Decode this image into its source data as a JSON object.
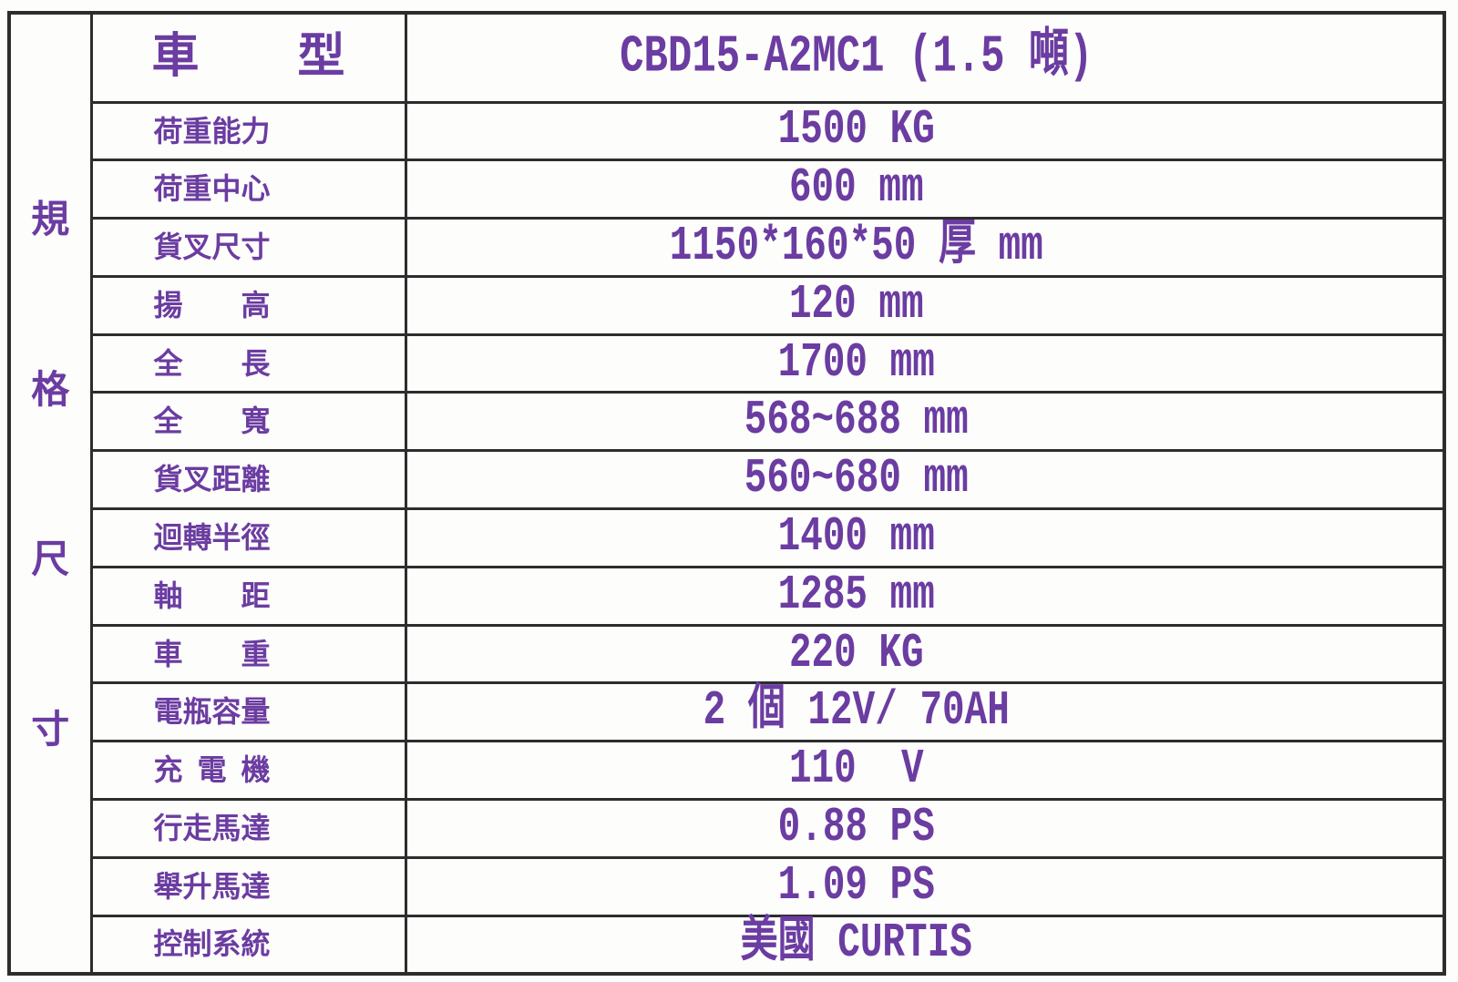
{
  "colors": {
    "text_purple": "#6b3ca1",
    "grid_line": "#2d2d2d",
    "background": "#fdfdfc"
  },
  "table": {
    "side_label": "規格尺寸",
    "header": {
      "label": "車型",
      "value": "CBD15-A2MC1 (1.5 噸)"
    },
    "rows": [
      {
        "label": "荷重能力",
        "value": "1500 KG"
      },
      {
        "label": "荷重中心",
        "value": "600 mm"
      },
      {
        "label": "貨叉尺寸",
        "value": "1150*160*50 厚 mm"
      },
      {
        "label": "揚高",
        "value": "120 mm"
      },
      {
        "label": "全長",
        "value": "1700 mm"
      },
      {
        "label": "全寬",
        "value": "568~688 mm"
      },
      {
        "label": "貨叉距離",
        "value": "560~680 mm"
      },
      {
        "label": "迴轉半徑",
        "value": "1400 mm"
      },
      {
        "label": "軸距",
        "value": "1285 mm"
      },
      {
        "label": "車重",
        "value": "220 KG"
      },
      {
        "label": "電瓶容量",
        "value": "2 個 12V/ 70AH"
      },
      {
        "label": "充電機",
        "value": "110  V"
      },
      {
        "label": "行走馬達",
        "value": "0.88 PS"
      },
      {
        "label": "舉升馬達",
        "value": "1.09 PS"
      },
      {
        "label": "控制系統",
        "value": "美國 CURTIS"
      }
    ]
  }
}
